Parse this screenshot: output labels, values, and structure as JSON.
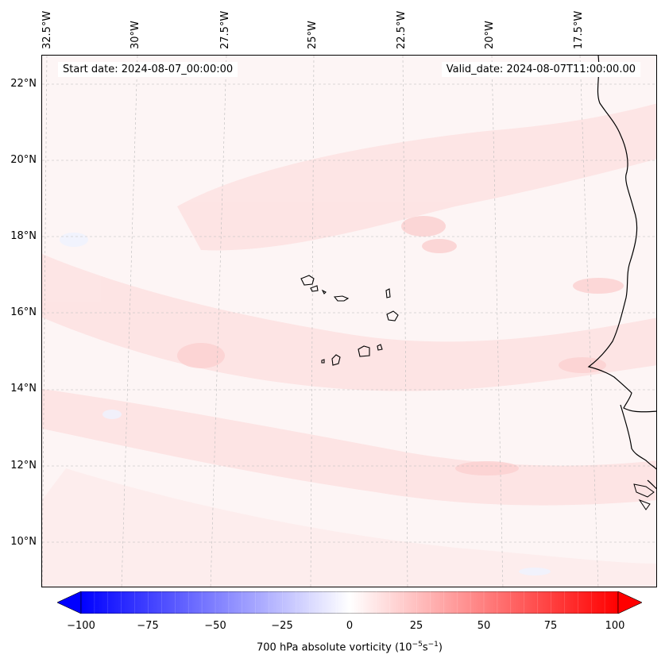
{
  "map": {
    "info_start": "Start date: 2024-08-07_00:00:00",
    "info_valid": "Valid_date: 2024-08-07T11:00:00.00",
    "lon_labels": [
      "32.5°W",
      "30°W",
      "27.5°W",
      "25°W",
      "22.5°W",
      "20°W",
      "17.5°W"
    ],
    "lat_labels": [
      "22°N",
      "20°N",
      "18°N",
      "16°N",
      "14°N",
      "12°N",
      "10°N"
    ],
    "field": "700 hPa absolute vorticity",
    "colors": {
      "coast": "#000000",
      "grid": "#bbbbbb",
      "neg": "#0000ff",
      "pos": "#ff0000",
      "zero": "#ffffff"
    }
  },
  "colorbar": {
    "tick_labels": [
      "−100",
      "−75",
      "−50",
      "−25",
      "0",
      "25",
      "50",
      "75",
      "100"
    ],
    "label_text": "700 hPa absolute vorticity (10",
    "label_exp1": "−5",
    "label_mid": "s",
    "label_exp2": "−1",
    "label_end": ")",
    "min": -100,
    "max": 100
  }
}
